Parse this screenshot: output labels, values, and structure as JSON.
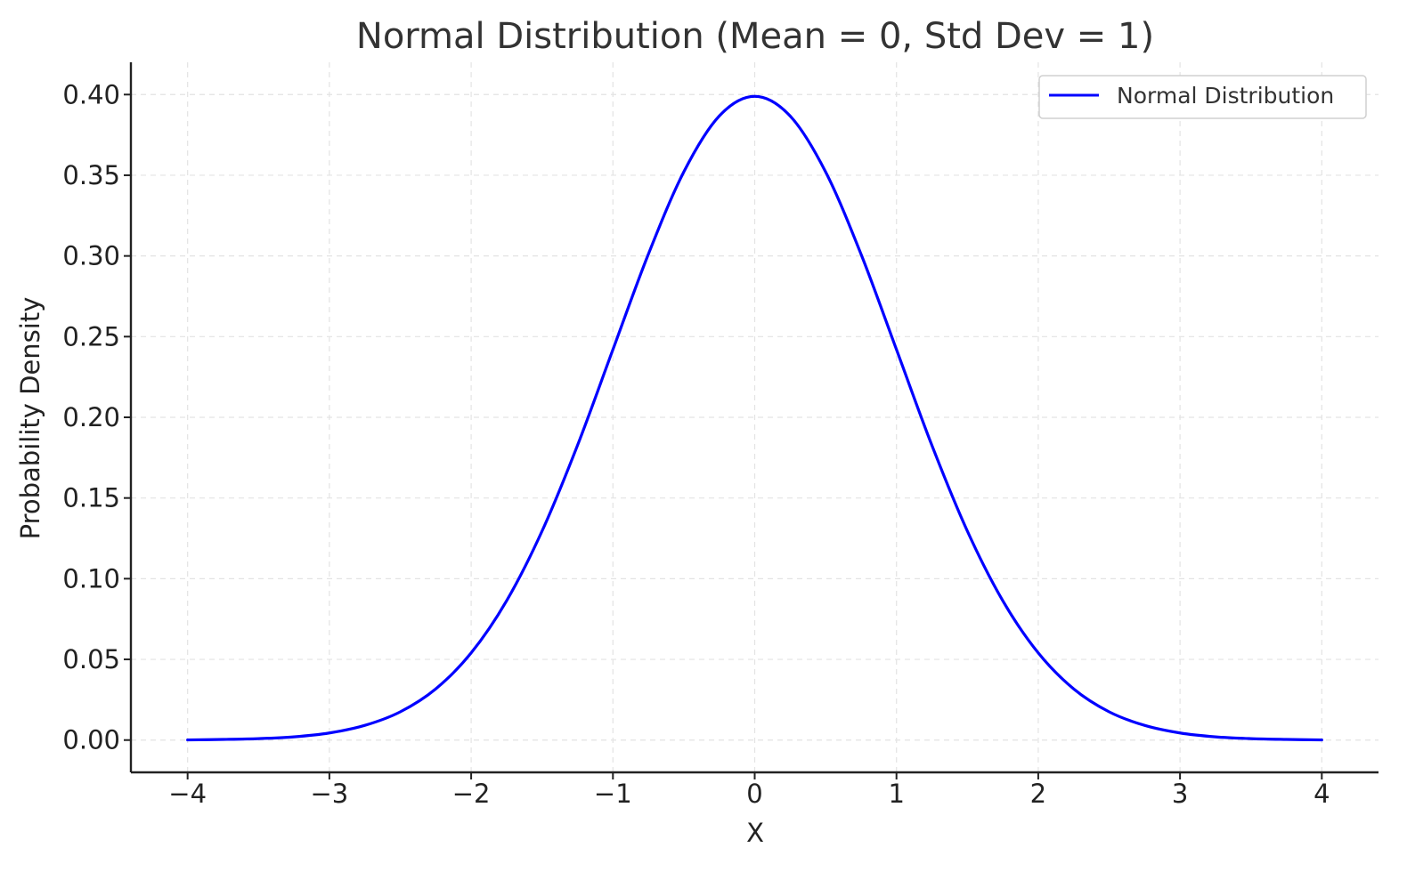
{
  "chart_data": {
    "type": "line",
    "title": "Normal Distribution (Mean = 0, Std Dev = 1)",
    "xlabel": "X",
    "ylabel": "Probability Density",
    "xlim": [
      -4.4,
      4.4
    ],
    "ylim": [
      -0.02,
      0.42
    ],
    "xticks": [
      -4,
      -3,
      -2,
      -1,
      0,
      1,
      2,
      3,
      4
    ],
    "xtick_labels": [
      "−4",
      "−3",
      "−2",
      "−1",
      "0",
      "1",
      "2",
      "3",
      "4"
    ],
    "yticks": [
      0.0,
      0.05,
      0.1,
      0.15,
      0.2,
      0.25,
      0.3,
      0.35,
      0.4
    ],
    "ytick_labels": [
      "0.00",
      "0.05",
      "0.10",
      "0.15",
      "0.20",
      "0.25",
      "0.30",
      "0.35",
      "0.40"
    ],
    "grid": true,
    "legend_position": "top-right",
    "series": [
      {
        "name": "Normal Distribution",
        "color": "#0000ff",
        "x": [
          -4.0,
          -3.75,
          -3.5,
          -3.25,
          -3.0,
          -2.75,
          -2.5,
          -2.25,
          -2.0,
          -1.75,
          -1.5,
          -1.25,
          -1.0,
          -0.75,
          -0.5,
          -0.25,
          0.0,
          0.25,
          0.5,
          0.75,
          1.0,
          1.25,
          1.5,
          1.75,
          2.0,
          2.25,
          2.5,
          2.75,
          3.0,
          3.25,
          3.5,
          3.75,
          4.0
        ],
        "y": [
          0.0001,
          0.0004,
          0.0009,
          0.002,
          0.0044,
          0.0091,
          0.0175,
          0.0317,
          0.054,
          0.0863,
          0.1295,
          0.1826,
          0.242,
          0.3011,
          0.3521,
          0.3867,
          0.3989,
          0.3867,
          0.3521,
          0.3011,
          0.242,
          0.1826,
          0.1295,
          0.0863,
          0.054,
          0.0317,
          0.0175,
          0.0091,
          0.0044,
          0.002,
          0.0009,
          0.0004,
          0.0001
        ]
      }
    ]
  }
}
